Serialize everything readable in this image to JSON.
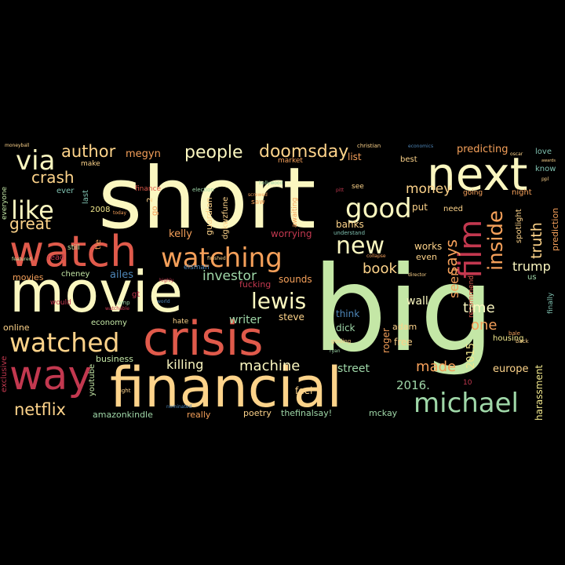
{
  "palette": {
    "cream": "#fbf7c0",
    "yellow": "#f4ea8e",
    "light_orange": "#fdd38a",
    "orange": "#f5a05a",
    "red": "#e05a4b",
    "crimson": "#c2384f",
    "mint": "#c4e7a6",
    "green": "#9fd7a8",
    "teal": "#7fc1b0",
    "blue": "#4e86b8"
  },
  "words": {
    "big": "big",
    "short": "short",
    "financial": "financial",
    "movie": "movie",
    "crisis": "crisis",
    "watch": "watch",
    "next": "next",
    "way": "way",
    "watched": "watched",
    "watching": "watching",
    "film": "film",
    "michael": "michael",
    "lewis": "lewis",
    "good": "good",
    "like": "like",
    "via": "via",
    "new": "new",
    "inside": "inside",
    "doomsday": "doomsday",
    "people": "people",
    "author": "author",
    "crash": "crash",
    "great": "great",
    "netflix": "netflix",
    "killing": "killing",
    "machine": "machine",
    "investor": "investor",
    "money": "money",
    "book": "book",
    "truth": "truth",
    "trump": "trump",
    "made": "made",
    "one": "one",
    "time": "time",
    "says": "says",
    "seen": "seen",
    "street": "street",
    "wall": "wall",
    "writer": "writer",
    "megyn": "megyn",
    "kelly": "kelly",
    "predicting": "predicting",
    "2016": "2016.",
    "2015": "2015",
    "worrying": "worrying",
    "europe": "europe",
    "harassment": "harassment",
    "prediction": "prediction",
    "spotlight": "spotlight",
    "adam": "adam",
    "mckay": "mckay",
    "poetry": "poetry",
    "thefinalsay": "thefinalsay!",
    "amazonkindle": "amazonkindle",
    "youtube": "youtube",
    "economy": "economy",
    "ailes": "ailes",
    "movies": "movies",
    "online": "online",
    "business": "business",
    "exclusive": "exclusive",
    "really": "really",
    "feel": "feel",
    "sounds": "sounds",
    "steve": "steve",
    "eisman": "eisman",
    "cheney": "cheney",
    "awaiting": "awaiting",
    "dgkwzfune": "dgkwzfune",
    "guardian": "guardian",
    "roger": "roger",
    "dick": "dick",
    "think": "think",
    "free": "free",
    "banks": "banks",
    "list": "list",
    "housing": "housing",
    "works": "works",
    "even": "even",
    "put": "put",
    "need": "need",
    "going": "going",
    "night": "night",
    "love": "love",
    "know": "know",
    "best": "best",
    "market": "market",
    "see": "see",
    "make": "make",
    "ever": "ever",
    "still": "still",
    "2008": "2008",
    "finance": "finance",
    "go": "go",
    "tie": "tie",
    "read": "read",
    "hate": "hate",
    "saw": "saw",
    "fucking": "fucking",
    "last": "last",
    "everyone": "everyone",
    "recommend": "recommend",
    "finally": "finally",
    "understand": "understand",
    "christian": "christian",
    "economics": "economics",
    "election": "election",
    "hollywood": "hollywood",
    "moneyball": "moneyball",
    "bale": "bale",
    "gosling": "gosling",
    "pitt": "pitt",
    "highly": "highly",
    "world": "world",
    "ryan": "ryan",
    "screwed": "screwed",
    "director": "director",
    "collapse": "collapse",
    "would": "would",
    "right": "right",
    "back": "back",
    "today": "today",
    "watchable": "watchable",
    "featured": "featured",
    "finished": "finished",
    "2": "2",
    "gt": "gt",
    "us": "us",
    "10": "10",
    "amp": "amp",
    "nominated": "nominated",
    "oscar": "oscar",
    "ppl": "ppl",
    "awards": "awards"
  }
}
